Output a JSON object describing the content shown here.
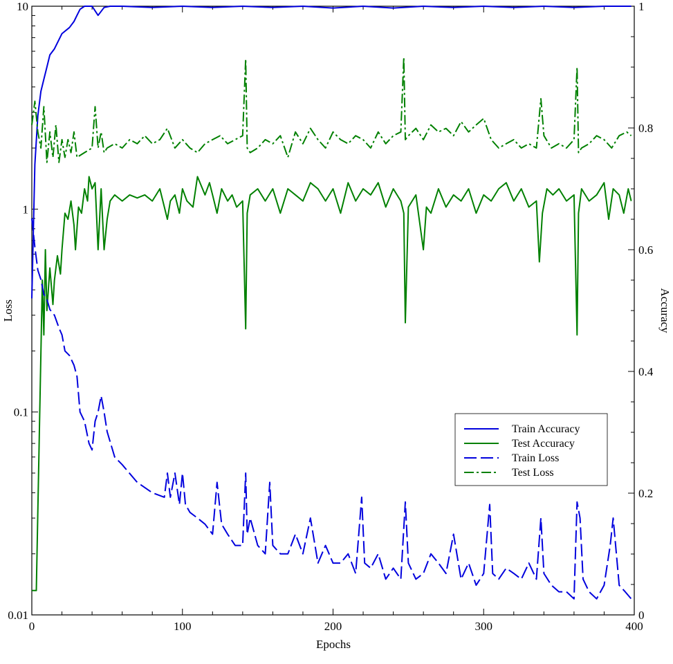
{
  "chart_data": {
    "type": "line",
    "xlabel": "Epochs",
    "ylabel_left": "Loss",
    "ylabel_right": "Accuracy",
    "xlim": [
      0,
      400
    ],
    "ylim_left": [
      0.01,
      10
    ],
    "ylim_left_scale": "log",
    "ylim_right": [
      0,
      1
    ],
    "grid": false,
    "legend_position": "center-right",
    "x_ticks": [
      "0",
      "100",
      "200",
      "300",
      "400"
    ],
    "y_left_ticks": [
      "0.01",
      "0.1",
      "1",
      "10"
    ],
    "y_right_ticks": [
      "0",
      "0.2",
      "0.4",
      "0.6",
      "0.8",
      "1"
    ],
    "colors": {
      "train": "#0000dd",
      "test": "#008000"
    },
    "series": [
      {
        "name": "Train Accuracy",
        "axis": "right",
        "style": "solid",
        "color": "#0000dd",
        "x": [
          0,
          2,
          4,
          6,
          8,
          10,
          12,
          15,
          18,
          20,
          25,
          28,
          30,
          32,
          35,
          40,
          44,
          48,
          52,
          60,
          80,
          100,
          120,
          140,
          160,
          180,
          200,
          220,
          240,
          260,
          280,
          300,
          320,
          340,
          360,
          380,
          398
        ],
        "y": [
          0.52,
          0.74,
          0.82,
          0.86,
          0.88,
          0.9,
          0.92,
          0.93,
          0.945,
          0.955,
          0.965,
          0.975,
          0.985,
          0.995,
          1.0,
          1.0,
          0.985,
          0.998,
          1.0,
          1.0,
          0.998,
          1.0,
          0.998,
          1.0,
          0.998,
          1.0,
          0.997,
          1.0,
          0.997,
          1.0,
          0.998,
          1.0,
          0.998,
          1.0,
          0.998,
          1.0,
          1.0
        ]
      },
      {
        "name": "Test Accuracy",
        "axis": "right",
        "style": "solid",
        "color": "#008000",
        "x": [
          0,
          3,
          5,
          7,
          8,
          9,
          10,
          12,
          14,
          15,
          17,
          19,
          20,
          22,
          24,
          26,
          28,
          29,
          31,
          33,
          35,
          37,
          38,
          40,
          42,
          44,
          46,
          48,
          50,
          52,
          55,
          60,
          65,
          70,
          75,
          80,
          85,
          90,
          92,
          95,
          98,
          100,
          103,
          107,
          110,
          115,
          118,
          120,
          123,
          126,
          130,
          133,
          136,
          140,
          142,
          143,
          145,
          150,
          155,
          160,
          165,
          170,
          175,
          180,
          185,
          190,
          195,
          200,
          205,
          210,
          215,
          220,
          225,
          230,
          235,
          240,
          245,
          247,
          248,
          250,
          255,
          260,
          262,
          265,
          270,
          275,
          280,
          285,
          290,
          295,
          300,
          305,
          310,
          315,
          320,
          325,
          330,
          335,
          337,
          339,
          342,
          346,
          350,
          355,
          360,
          362,
          363,
          365,
          370,
          375,
          380,
          383,
          386,
          390,
          393,
          396,
          398
        ],
        "y": [
          0.04,
          0.04,
          0.3,
          0.55,
          0.46,
          0.6,
          0.5,
          0.57,
          0.51,
          0.55,
          0.59,
          0.56,
          0.6,
          0.66,
          0.65,
          0.68,
          0.64,
          0.6,
          0.67,
          0.66,
          0.7,
          0.68,
          0.72,
          0.7,
          0.71,
          0.6,
          0.7,
          0.6,
          0.65,
          0.68,
          0.69,
          0.68,
          0.69,
          0.685,
          0.69,
          0.68,
          0.7,
          0.65,
          0.68,
          0.69,
          0.66,
          0.7,
          0.68,
          0.67,
          0.72,
          0.69,
          0.71,
          0.69,
          0.66,
          0.7,
          0.68,
          0.69,
          0.67,
          0.68,
          0.47,
          0.66,
          0.69,
          0.7,
          0.68,
          0.7,
          0.66,
          0.7,
          0.69,
          0.68,
          0.71,
          0.7,
          0.68,
          0.7,
          0.66,
          0.71,
          0.68,
          0.7,
          0.69,
          0.71,
          0.67,
          0.7,
          0.68,
          0.66,
          0.48,
          0.67,
          0.69,
          0.6,
          0.67,
          0.66,
          0.7,
          0.67,
          0.69,
          0.68,
          0.7,
          0.66,
          0.69,
          0.68,
          0.7,
          0.71,
          0.68,
          0.7,
          0.67,
          0.68,
          0.58,
          0.66,
          0.7,
          0.69,
          0.7,
          0.68,
          0.69,
          0.46,
          0.66,
          0.7,
          0.68,
          0.69,
          0.71,
          0.65,
          0.7,
          0.69,
          0.66,
          0.7,
          0.68
        ]
      },
      {
        "name": "Train Loss",
        "axis": "left",
        "style": "dashed",
        "color": "#0000dd",
        "x": [
          0,
          2,
          4,
          6,
          8,
          10,
          12,
          15,
          18,
          20,
          22,
          25,
          28,
          30,
          32,
          35,
          38,
          40,
          42,
          44,
          46,
          48,
          50,
          55,
          60,
          70,
          80,
          88,
          90,
          92,
          95,
          98,
          100,
          102,
          105,
          110,
          115,
          120,
          123,
          126,
          130,
          135,
          140,
          142,
          143,
          145,
          150,
          155,
          158,
          160,
          165,
          170,
          175,
          180,
          185,
          190,
          195,
          200,
          205,
          210,
          215,
          219,
          221,
          225,
          230,
          235,
          240,
          245,
          248,
          250,
          255,
          260,
          265,
          270,
          275,
          280,
          285,
          290,
          295,
          300,
          304,
          306,
          310,
          315,
          320,
          325,
          330,
          335,
          338,
          340,
          345,
          350,
          355,
          360,
          362,
          364,
          366,
          370,
          375,
          380,
          384,
          386,
          390,
          394,
          398
        ],
        "y": [
          0.9,
          0.65,
          0.5,
          0.45,
          0.38,
          0.36,
          0.32,
          0.3,
          0.26,
          0.24,
          0.2,
          0.19,
          0.17,
          0.15,
          0.1,
          0.09,
          0.07,
          0.065,
          0.09,
          0.1,
          0.12,
          0.1,
          0.08,
          0.06,
          0.055,
          0.045,
          0.04,
          0.038,
          0.05,
          0.038,
          0.05,
          0.035,
          0.05,
          0.035,
          0.032,
          0.03,
          0.028,
          0.025,
          0.045,
          0.028,
          0.025,
          0.022,
          0.022,
          0.05,
          0.025,
          0.03,
          0.022,
          0.02,
          0.045,
          0.022,
          0.02,
          0.02,
          0.025,
          0.02,
          0.03,
          0.018,
          0.022,
          0.018,
          0.018,
          0.02,
          0.016,
          0.038,
          0.018,
          0.017,
          0.02,
          0.015,
          0.017,
          0.015,
          0.036,
          0.018,
          0.015,
          0.016,
          0.02,
          0.018,
          0.016,
          0.025,
          0.015,
          0.018,
          0.014,
          0.016,
          0.035,
          0.016,
          0.015,
          0.017,
          0.016,
          0.015,
          0.018,
          0.015,
          0.03,
          0.016,
          0.014,
          0.013,
          0.013,
          0.012,
          0.036,
          0.03,
          0.015,
          0.013,
          0.012,
          0.014,
          0.022,
          0.03,
          0.014,
          0.013,
          0.012
        ]
      },
      {
        "name": "Test Loss",
        "axis": "left",
        "style": "dashdot",
        "color": "#008000",
        "x": [
          0,
          2,
          4,
          6,
          8,
          10,
          12,
          14,
          16,
          18,
          20,
          22,
          24,
          26,
          28,
          30,
          35,
          40,
          42,
          44,
          46,
          48,
          50,
          55,
          60,
          65,
          70,
          75,
          80,
          85,
          90,
          95,
          100,
          105,
          110,
          115,
          120,
          125,
          130,
          135,
          140,
          142,
          143,
          145,
          150,
          155,
          160,
          165,
          170,
          175,
          180,
          185,
          190,
          195,
          200,
          205,
          210,
          215,
          220,
          225,
          230,
          235,
          240,
          245,
          247,
          248,
          250,
          255,
          260,
          265,
          270,
          275,
          280,
          285,
          290,
          295,
          300,
          305,
          310,
          315,
          320,
          325,
          330,
          335,
          338,
          340,
          345,
          350,
          355,
          360,
          362,
          363,
          365,
          370,
          375,
          380,
          385,
          390,
          395,
          398
        ],
        "y": [
          2.6,
          3.4,
          2.4,
          2.0,
          3.2,
          1.7,
          2.4,
          1.8,
          2.6,
          1.7,
          2.2,
          1.8,
          2.2,
          1.9,
          2.4,
          1.8,
          1.9,
          2.0,
          3.2,
          2.0,
          2.4,
          1.9,
          2.0,
          2.1,
          2.0,
          2.2,
          2.1,
          2.3,
          2.1,
          2.2,
          2.5,
          2.0,
          2.2,
          2.0,
          1.9,
          2.1,
          2.2,
          2.3,
          2.1,
          2.2,
          2.3,
          5.5,
          2.0,
          1.9,
          2.0,
          2.2,
          2.1,
          2.3,
          1.8,
          2.4,
          2.1,
          2.5,
          2.2,
          2.0,
          2.4,
          2.2,
          2.1,
          2.3,
          2.2,
          2.0,
          2.4,
          2.1,
          2.3,
          2.4,
          5.6,
          2.2,
          2.3,
          2.5,
          2.2,
          2.6,
          2.4,
          2.5,
          2.3,
          2.7,
          2.4,
          2.6,
          2.8,
          2.2,
          2.0,
          2.1,
          2.2,
          2.0,
          2.1,
          2.0,
          3.5,
          2.3,
          2.0,
          2.1,
          2.0,
          2.2,
          5.0,
          1.9,
          2.0,
          2.1,
          2.3,
          2.2,
          2.0,
          2.3,
          2.4,
          2.3
        ]
      }
    ]
  }
}
